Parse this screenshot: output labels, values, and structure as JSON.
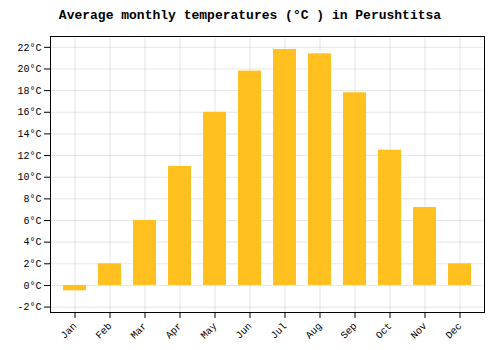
{
  "chart_data": {
    "type": "bar",
    "title": "Average monthly temperatures (°C ) in Perushtitsa",
    "categories": [
      "Jan",
      "Feb",
      "Mar",
      "Apr",
      "May",
      "Jun",
      "Jul",
      "Aug",
      "Sep",
      "Oct",
      "Nov",
      "Dec"
    ],
    "values": [
      -0.5,
      2.0,
      6.0,
      11.0,
      16.0,
      19.8,
      21.8,
      21.4,
      17.8,
      12.5,
      7.2,
      2.0
    ],
    "color": "#FFC020",
    "ylim": [
      -2.5,
      23
    ],
    "yticks": [
      {
        "value": -2,
        "label": "-2°C"
      },
      {
        "value": 0,
        "label": "0°C"
      },
      {
        "value": 2,
        "label": "2°C"
      },
      {
        "value": 4,
        "label": "4°C"
      },
      {
        "value": 6,
        "label": "6°C"
      },
      {
        "value": 8,
        "label": "8°C"
      },
      {
        "value": 10,
        "label": "10°C"
      },
      {
        "value": 12,
        "label": "12°C"
      },
      {
        "value": 14,
        "label": "14°C"
      },
      {
        "value": 16,
        "label": "16°C"
      },
      {
        "value": 18,
        "label": "18°C"
      },
      {
        "value": 20,
        "label": "20°C"
      },
      {
        "value": 22,
        "label": "22°C"
      }
    ],
    "grid": true
  }
}
